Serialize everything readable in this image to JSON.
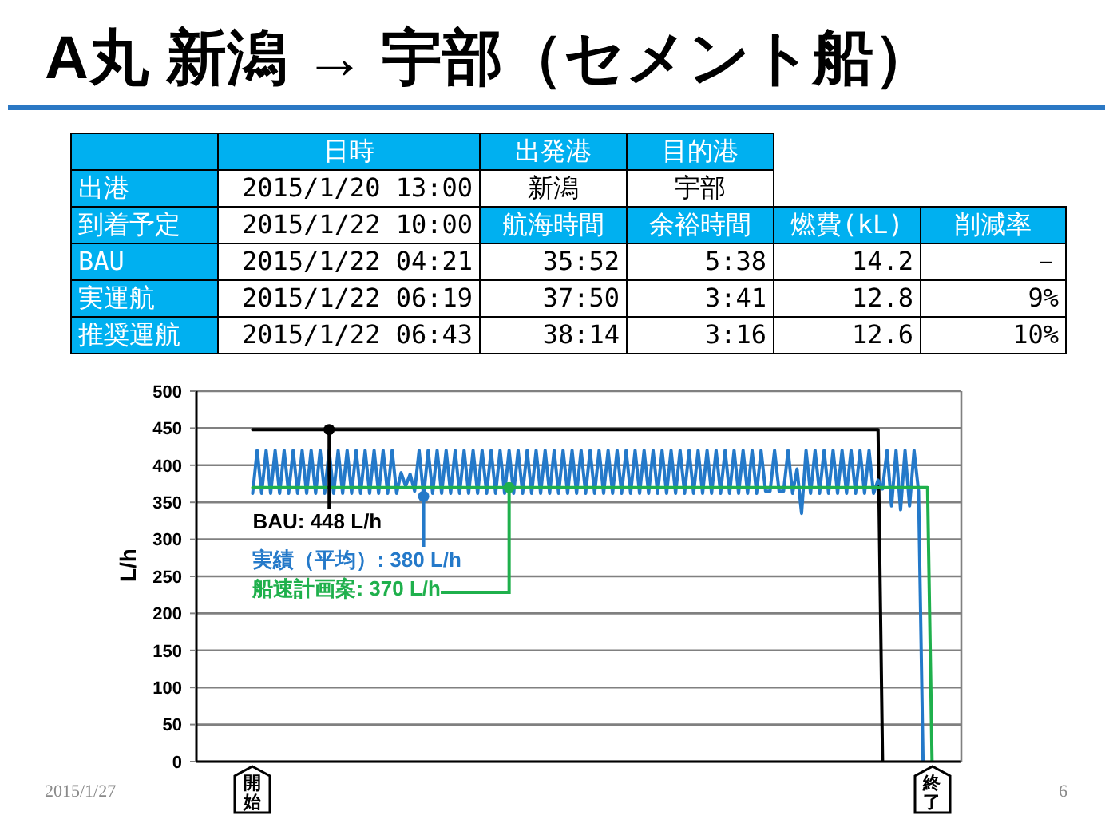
{
  "chart_data": [
    {
      "type": "other",
      "title": "A丸 新潟 → 宇部（セメント船）",
      "annotations": [
        "日時",
        "出発港",
        "目的港",
        "出港",
        "2015/1/20 13:00",
        "新潟",
        "宇部",
        "到着予定",
        "2015/1/22 10:00",
        "航海時間",
        "余裕時間",
        "燃費(kL)",
        "削減率",
        "BAU",
        "2015/1/22 04:21",
        "35:52",
        "5:38",
        "14.2",
        "－",
        "実運航",
        "2015/1/22 06:19",
        "37:50",
        "3:41",
        "12.8",
        "9%",
        "推奨運航",
        "2015/1/22 06:43",
        "38:14",
        "3:16",
        "12.6",
        "10%"
      ]
    },
    {
      "type": "line",
      "ylabel": "L/h",
      "categories": [
        null,
        null,
        null,
        null,
        null,
        null,
        null,
        null,
        null,
        null,
        null,
        null,
        null,
        null,
        null,
        null,
        null,
        null,
        null,
        null,
        null,
        null,
        null,
        null,
        null,
        null,
        null,
        null,
        null,
        null,
        null,
        null,
        null,
        null,
        null,
        null,
        null,
        null,
        null,
        null,
        null,
        null,
        null,
        null,
        null,
        null,
        null,
        null,
        null,
        null,
        null,
        null,
        null,
        null,
        null,
        null,
        null,
        null,
        null,
        null,
        null,
        null,
        null,
        null,
        null,
        null,
        null,
        null,
        null,
        null,
        null,
        null,
        null,
        null,
        null,
        null,
        null,
        null,
        null,
        null,
        null,
        null,
        null,
        null,
        null,
        null,
        null,
        null,
        null,
        null,
        null,
        null,
        null,
        null,
        null,
        null,
        null,
        null,
        null,
        null,
        null,
        null,
        null,
        null,
        null,
        null,
        null,
        null,
        null,
        null,
        null,
        null,
        null,
        null,
        null,
        null,
        null,
        null,
        null,
        null,
        null,
        null,
        null,
        null,
        null,
        null,
        null,
        null,
        null,
        null,
        null,
        null,
        null,
        null,
        null,
        null,
        null,
        null,
        null,
        null,
        null,
        null,
        null,
        null,
        null,
        null,
        null,
        null,
        null,
        null,
        null,
        null,
        null,
        null,
        null,
        null,
        null,
        null,
        null,
        null,
        null,
        null,
        null,
        null,
        null,
        null,
        null,
        null,
        null,
        null
      ],
      "series": [
        {
          "color": "#000000",
          "values": [
            null,
            null,
            null,
            null,
            null,
            null,
            null,
            null,
            null,
            null,
            null,
            null,
            448,
            448,
            448,
            448,
            448,
            448,
            448,
            448,
            448,
            448,
            448,
            448,
            448,
            448,
            448,
            448,
            448,
            448,
            448,
            448,
            448,
            448,
            448,
            448,
            448,
            448,
            448,
            448,
            448,
            448,
            448,
            448,
            448,
            448,
            448,
            448,
            448,
            448,
            448,
            448,
            448,
            448,
            448,
            448,
            448,
            448,
            448,
            448,
            448,
            448,
            448,
            448,
            448,
            448,
            448,
            448,
            448,
            448,
            448,
            448,
            448,
            448,
            448,
            448,
            448,
            448,
            448,
            448,
            448,
            448,
            448,
            448,
            448,
            448,
            448,
            448,
            448,
            448,
            448,
            448,
            448,
            448,
            448,
            448,
            448,
            448,
            448,
            448,
            448,
            448,
            448,
            448,
            448,
            448,
            448,
            448,
            448,
            448,
            448,
            448,
            448,
            448,
            448,
            448,
            448,
            448,
            448,
            448,
            448,
            448,
            448,
            448,
            448,
            448,
            448,
            448,
            448,
            448,
            448,
            448,
            448,
            448,
            448,
            448,
            448,
            448,
            448,
            448,
            448,
            448,
            448,
            448,
            448,
            448,
            448,
            448,
            448,
            448,
            448,
            448,
            0,
            null,
            null,
            null,
            null,
            null,
            null,
            null,
            null,
            null,
            null,
            null,
            null,
            null,
            null,
            null,
            null,
            null
          ]
        },
        {
          "color": "#2479c9",
          "values": [
            null,
            null,
            null,
            null,
            null,
            null,
            null,
            null,
            null,
            null,
            null,
            null,
            362,
            420,
            362,
            420,
            362,
            420,
            362,
            420,
            362,
            420,
            362,
            420,
            362,
            420,
            362,
            420,
            362,
            420,
            362,
            420,
            362,
            420,
            362,
            420,
            362,
            420,
            362,
            420,
            362,
            420,
            362,
            420,
            362,
            390,
            372,
            388,
            365,
            420,
            358,
            420,
            362,
            420,
            362,
            420,
            362,
            420,
            362,
            420,
            362,
            420,
            362,
            420,
            362,
            420,
            362,
            420,
            362,
            420,
            362,
            420,
            362,
            420,
            362,
            420,
            362,
            420,
            362,
            420,
            362,
            420,
            362,
            420,
            362,
            420,
            362,
            420,
            362,
            420,
            362,
            420,
            362,
            420,
            362,
            420,
            362,
            420,
            362,
            420,
            362,
            420,
            362,
            420,
            362,
            420,
            362,
            420,
            362,
            420,
            362,
            420,
            362,
            420,
            362,
            420,
            362,
            420,
            362,
            420,
            362,
            420,
            362,
            420,
            362,
            420,
            365,
            365,
            420,
            365,
            365,
            420,
            362,
            395,
            335,
            420,
            362,
            420,
            362,
            420,
            362,
            420,
            362,
            420,
            362,
            420,
            362,
            420,
            362,
            420,
            362,
            380,
            368,
            420,
            345,
            420,
            340,
            420,
            345,
            420,
            365,
            0,
            null,
            null,
            null,
            null,
            null,
            null,
            null,
            null
          ]
        },
        {
          "color": "#1fb04c",
          "values": [
            null,
            null,
            null,
            null,
            null,
            null,
            null,
            null,
            null,
            null,
            null,
            null,
            370,
            370,
            370,
            370,
            370,
            370,
            370,
            370,
            370,
            370,
            370,
            370,
            370,
            370,
            370,
            370,
            370,
            370,
            370,
            370,
            370,
            370,
            370,
            370,
            370,
            370,
            370,
            370,
            370,
            370,
            370,
            370,
            370,
            370,
            370,
            370,
            370,
            370,
            370,
            370,
            370,
            370,
            370,
            370,
            370,
            370,
            370,
            370,
            370,
            370,
            370,
            370,
            370,
            370,
            370,
            370,
            370,
            370,
            370,
            370,
            370,
            370,
            370,
            370,
            370,
            370,
            370,
            370,
            370,
            370,
            370,
            370,
            370,
            370,
            370,
            370,
            370,
            370,
            370,
            370,
            370,
            370,
            370,
            370,
            370,
            370,
            370,
            370,
            370,
            370,
            370,
            370,
            370,
            370,
            370,
            370,
            370,
            370,
            370,
            370,
            370,
            370,
            370,
            370,
            370,
            370,
            370,
            370,
            370,
            370,
            370,
            370,
            370,
            370,
            370,
            370,
            370,
            370,
            370,
            370,
            370,
            370,
            370,
            370,
            370,
            370,
            370,
            370,
            370,
            370,
            370,
            370,
            370,
            370,
            370,
            370,
            370,
            370,
            370,
            370,
            370,
            370,
            370,
            370,
            370,
            370,
            370,
            370,
            370,
            370,
            370,
            0,
            null,
            null,
            null,
            null,
            null,
            null
          ]
        }
      ],
      "ylim": [
        0,
        500
      ],
      "yticks": [
        0,
        50,
        100,
        150,
        200,
        250,
        300,
        350,
        400,
        450,
        500
      ],
      "grid": "y",
      "tick_labels": "y",
      "marker": "none",
      "line_style": "solid",
      "annotations": [
        {
          "text": "BAU: 448 L/h",
          "y": 448
        },
        "実績（平均）: 380 L/h",
        "船速計画案: 370 L/h",
        "開始",
        "終了",
        "2015/1/27",
        "6"
      ]
    }
  ]
}
